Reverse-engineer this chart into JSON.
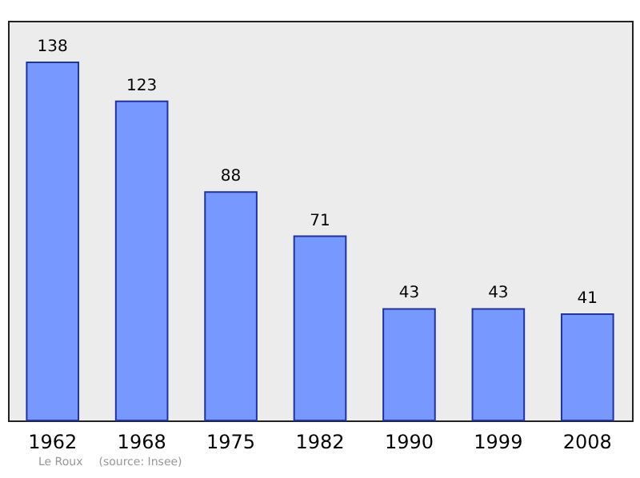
{
  "chart_data": {
    "type": "bar",
    "categories": [
      "1962",
      "1968",
      "1975",
      "1982",
      "1990",
      "1999",
      "2008"
    ],
    "values": [
      138,
      123,
      88,
      71,
      43,
      43,
      41
    ],
    "color": "#7799ff",
    "data_labels": true,
    "annotations": [
      "Le Roux",
      "(source: Insee)"
    ]
  }
}
